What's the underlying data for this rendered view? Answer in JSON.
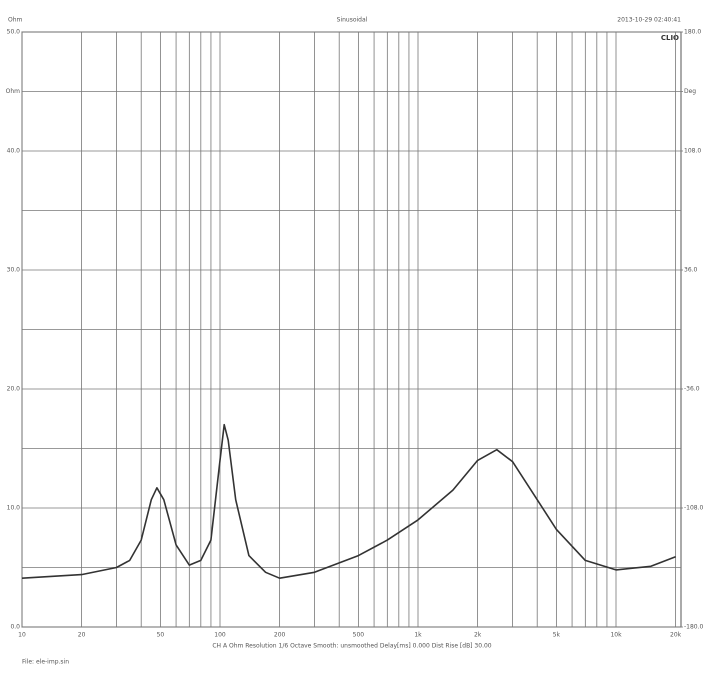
{
  "chart_data": {
    "type": "line",
    "title": "Sinusoidal",
    "top_left": "Ohm",
    "top_right": "2013-10-29 02:40:41",
    "logo": "CLIO",
    "footer": "CH A  Ohm  Resolution 1/6 Octave  Smooth: unsmoothed  Delay[ms] 0.000  Dist Rise [dB] 30.00",
    "file": "File: ele-imp.sin",
    "log_x": true,
    "grid": true,
    "x": [
      10,
      20,
      30,
      35,
      40,
      45,
      48,
      52,
      60,
      70,
      80,
      90,
      100,
      105,
      110,
      120,
      140,
      170,
      200,
      300,
      500,
      700,
      1000,
      1500,
      2000,
      2500,
      3000,
      4000,
      5000,
      7000,
      10000,
      15000,
      20000
    ],
    "series": [
      {
        "name": "Ohm",
        "color": "#333333",
        "values": [
          4.1,
          4.4,
          5.0,
          5.6,
          7.3,
          10.7,
          11.7,
          10.7,
          6.9,
          5.2,
          5.6,
          7.3,
          14.0,
          17.0,
          15.7,
          10.7,
          6.0,
          4.6,
          4.1,
          4.6,
          6.0,
          7.3,
          9.0,
          11.5,
          14.0,
          14.9,
          13.9,
          10.7,
          8.2,
          5.6,
          4.8,
          5.1,
          5.9
        ]
      }
    ],
    "xlim": [
      10,
      20000
    ],
    "xticks": [
      10,
      20,
      50,
      100,
      200,
      500,
      {
        "value": 1000,
        "label": "1k"
      },
      {
        "value": 2000,
        "label": "2k"
      },
      {
        "value": 5000,
        "label": "5k"
      },
      {
        "value": 10000,
        "label": "10k"
      },
      {
        "value": 20000,
        "label": "20k"
      }
    ],
    "xminor": [
      30,
      40,
      60,
      70,
      80,
      90,
      300,
      400,
      600,
      700,
      800,
      900,
      3000,
      4000,
      6000,
      7000,
      8000,
      9000
    ],
    "ylim": [
      0,
      50
    ],
    "yticks": [
      {
        "value": 0,
        "label": "0.0"
      },
      {
        "value": 10,
        "label": "10.0"
      },
      {
        "value": 20,
        "label": "20.0"
      },
      {
        "value": 30,
        "label": "30.0"
      },
      {
        "value": 40,
        "label": "40.0"
      },
      {
        "value": 45,
        "label": "Ohm"
      },
      {
        "value": 50,
        "label": "50.0"
      }
    ],
    "yminor": [
      5,
      15,
      25,
      35
    ],
    "y2lim": [
      -180,
      180
    ],
    "y2ticks": [
      {
        "value": -180,
        "label": "-180.0"
      },
      {
        "value": -108,
        "label": "-108.0"
      },
      {
        "value": -36,
        "label": "-36.0"
      },
      {
        "value": 36,
        "label": "36.0"
      },
      {
        "value": 108,
        "label": "108.0"
      },
      {
        "value": 144,
        "label": "Deg"
      },
      {
        "value": 180,
        "label": "180.0"
      }
    ]
  }
}
